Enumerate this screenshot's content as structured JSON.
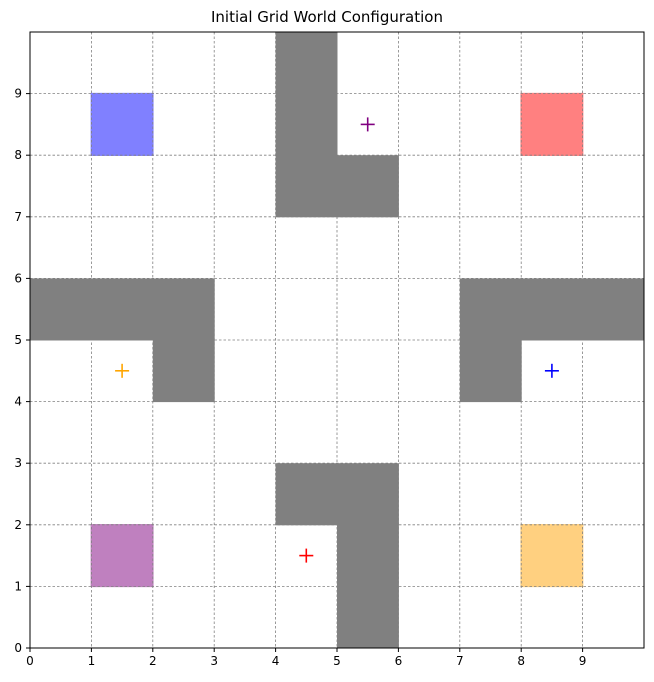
{
  "title": "Initial Grid World Configuration",
  "grid": {
    "xlim": [
      0,
      10
    ],
    "ylim": [
      0,
      10
    ],
    "x_ticks": [
      "0",
      "1",
      "2",
      "3",
      "4",
      "5",
      "6",
      "7",
      "8",
      "9"
    ],
    "y_ticks": [
      "0",
      "1",
      "2",
      "3",
      "4",
      "5",
      "6",
      "7",
      "8",
      "9"
    ],
    "grid_lines": true,
    "wall_color": "#808080",
    "walls": [
      {
        "x": 4,
        "y": 9
      },
      {
        "x": 4,
        "y": 8
      },
      {
        "x": 4,
        "y": 7
      },
      {
        "x": 5,
        "y": 7
      },
      {
        "x": 0,
        "y": 5
      },
      {
        "x": 1,
        "y": 5
      },
      {
        "x": 2,
        "y": 5
      },
      {
        "x": 2,
        "y": 4
      },
      {
        "x": 7,
        "y": 5
      },
      {
        "x": 8,
        "y": 5
      },
      {
        "x": 9,
        "y": 5
      },
      {
        "x": 7,
        "y": 4
      },
      {
        "x": 4,
        "y": 2
      },
      {
        "x": 5,
        "y": 2
      },
      {
        "x": 5,
        "y": 1
      },
      {
        "x": 5,
        "y": 0
      }
    ],
    "goals": [
      {
        "x": 1,
        "y": 8,
        "color": "#8080ff"
      },
      {
        "x": 8,
        "y": 8,
        "color": "#ff8080"
      },
      {
        "x": 1,
        "y": 1,
        "color": "#bf80bf"
      },
      {
        "x": 8,
        "y": 1,
        "color": "#ffd080"
      }
    ],
    "agents": [
      {
        "x": 5.5,
        "y": 8.5,
        "color": "#800080"
      },
      {
        "x": 1.5,
        "y": 4.5,
        "color": "#ffa500"
      },
      {
        "x": 8.5,
        "y": 4.5,
        "color": "#0000ff"
      },
      {
        "x": 4.5,
        "y": 1.5,
        "color": "#ff0000"
      }
    ]
  }
}
